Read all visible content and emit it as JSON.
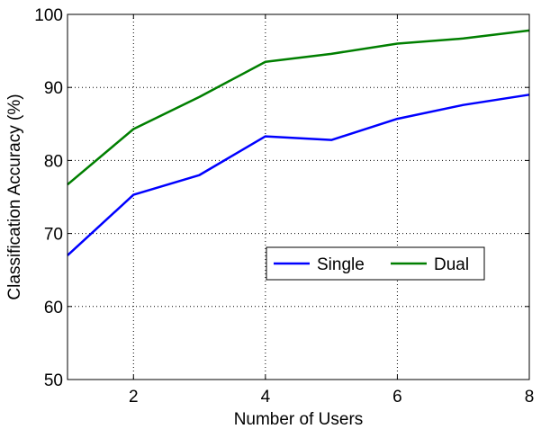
{
  "chart_data": {
    "type": "line",
    "title": "",
    "xlabel": "Number of Users",
    "ylabel": "Classification Accuracy (%)",
    "xlim": [
      1,
      8
    ],
    "ylim": [
      50,
      100
    ],
    "xticks": [
      2,
      4,
      6,
      8
    ],
    "yticks": [
      50,
      60,
      70,
      80,
      90,
      100
    ],
    "grid": true,
    "legend_position": "right-middle",
    "legend_orientation": "horizontal",
    "x": [
      1,
      2,
      3,
      4,
      5,
      6,
      7,
      8
    ],
    "series": [
      {
        "name": "Single",
        "color": "#0000ff",
        "values": [
          67.0,
          75.3,
          78.0,
          83.3,
          82.8,
          85.7,
          87.6,
          89.0
        ]
      },
      {
        "name": "Dual",
        "color": "#007f00",
        "values": [
          76.7,
          84.3,
          88.7,
          93.5,
          94.6,
          96.0,
          96.7,
          97.8
        ]
      }
    ]
  }
}
